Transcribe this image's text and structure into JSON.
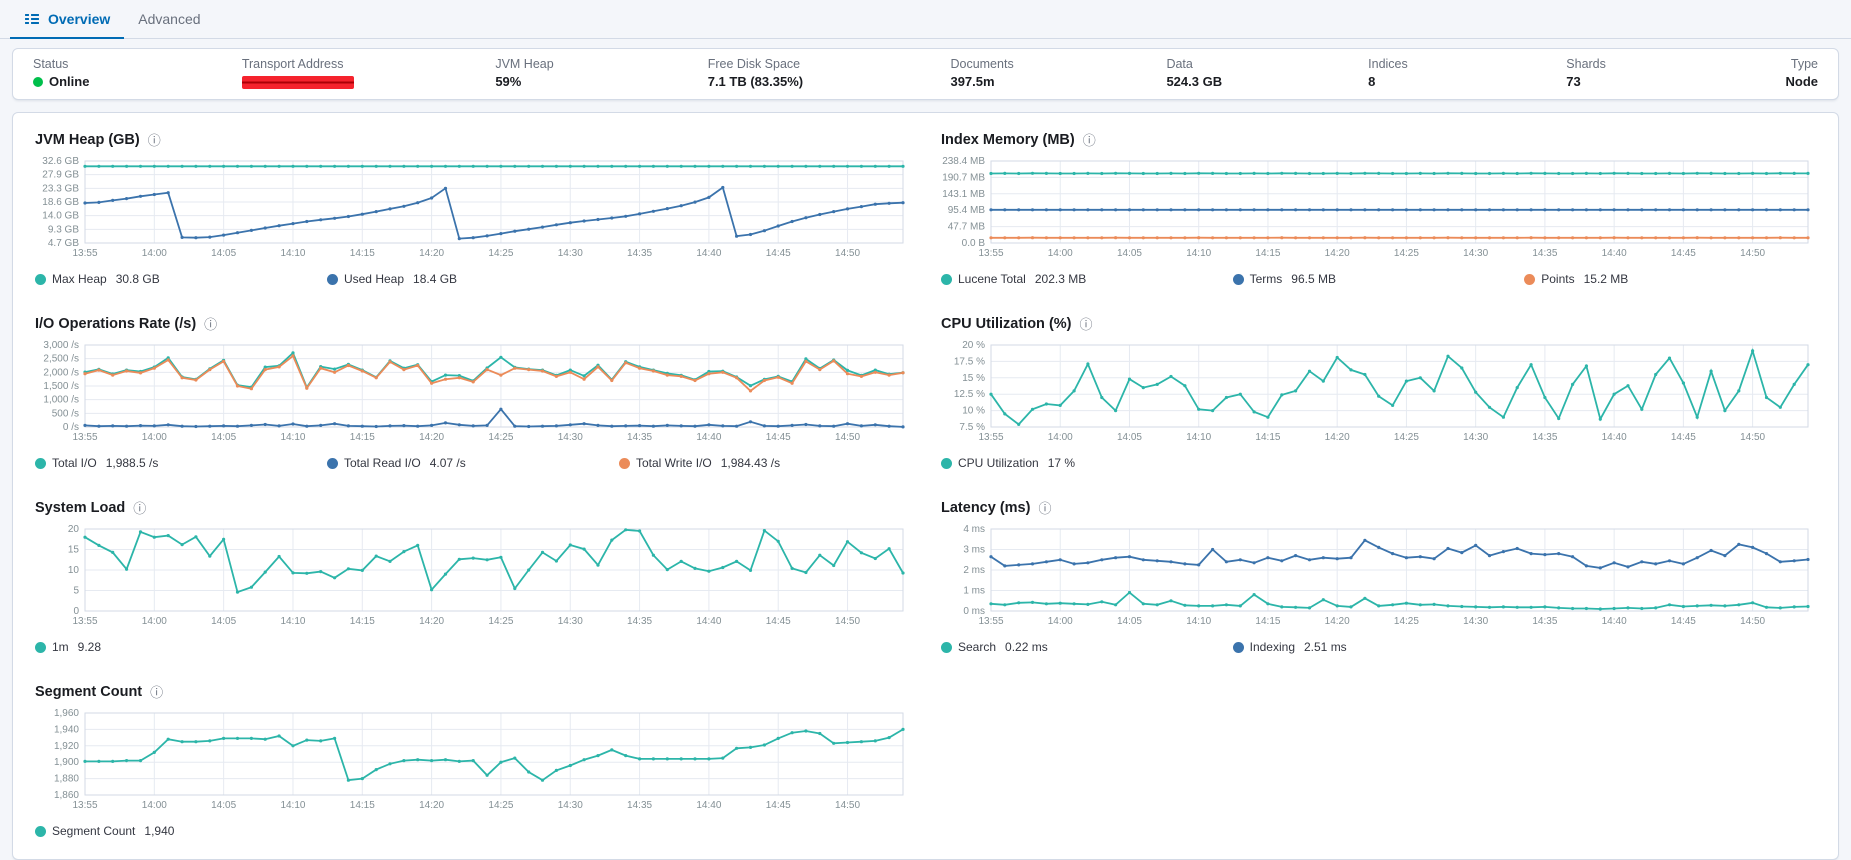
{
  "colors": {
    "teal": "#2cb5a9",
    "blue": "#3b73ac",
    "orange": "#eb8b59",
    "green": "#00bf4b",
    "tab_blue": "#006bb4",
    "grid_line": "#e6eaf1",
    "axis_border": "#d3dae6",
    "axis_text": "#849095"
  },
  "tabs": [
    {
      "label": "Overview",
      "active": true
    },
    {
      "label": "Advanced",
      "active": false
    }
  ],
  "summary": {
    "items": [
      {
        "label": "Status",
        "value": "Online"
      },
      {
        "label": "Transport Address",
        "value": "",
        "redacted": true
      },
      {
        "label": "JVM Heap",
        "value": "59%"
      },
      {
        "label": "Free Disk Space",
        "value": "7.1 TB (83.35%)"
      },
      {
        "label": "Documents",
        "value": "397.5m"
      },
      {
        "label": "Data",
        "value": "524.3 GB"
      },
      {
        "label": "Indices",
        "value": "8"
      },
      {
        "label": "Shards",
        "value": "73"
      },
      {
        "label": "Type",
        "value": "Node"
      }
    ]
  },
  "time_ticks": [
    "13:55",
    "14:00",
    "14:05",
    "14:10",
    "14:15",
    "14:20",
    "14:25",
    "14:30",
    "14:35",
    "14:40",
    "14:45",
    "14:50"
  ],
  "charts": [
    {
      "id": "jvm-heap",
      "title": "JVM Heap (GB)",
      "y_ticks": [
        "32.6 GB",
        "27.9 GB",
        "23.3 GB",
        "18.6 GB",
        "14.0 GB",
        "9.3 GB",
        "4.7 GB"
      ],
      "ymin": 4.7,
      "ymax": 32.6,
      "series": [
        {
          "label": "Max Heap",
          "value": "30.8 GB",
          "color": "teal",
          "values": [
            30.8,
            30.8,
            30.8,
            30.8,
            30.8,
            30.8,
            30.8,
            30.8,
            30.8,
            30.8,
            30.8,
            30.8,
            30.8,
            30.8,
            30.8,
            30.8,
            30.8,
            30.8,
            30.8,
            30.8,
            30.8,
            30.8,
            30.8,
            30.8,
            30.8,
            30.8,
            30.8,
            30.8,
            30.8,
            30.8,
            30.8,
            30.8,
            30.8,
            30.8,
            30.8,
            30.8,
            30.8,
            30.8,
            30.8,
            30.8,
            30.8,
            30.8,
            30.8,
            30.8,
            30.8,
            30.8,
            30.8,
            30.8,
            30.8,
            30.8,
            30.8,
            30.8,
            30.8,
            30.8,
            30.8,
            30.8,
            30.8,
            30.8,
            30.8,
            30.8
          ]
        },
        {
          "label": "Used Heap",
          "value": "18.4 GB",
          "color": "blue",
          "values": [
            18.3,
            18.5,
            19.2,
            19.8,
            20.6,
            21.2,
            21.8,
            6.6,
            6.5,
            6.7,
            7.4,
            8.2,
            9.0,
            9.8,
            10.6,
            11.3,
            12.0,
            12.6,
            13.1,
            13.7,
            14.5,
            15.4,
            16.3,
            17.2,
            18.4,
            20.0,
            23.3,
            6.2,
            6.5,
            7.1,
            7.9,
            8.7,
            9.4,
            10.1,
            10.9,
            11.6,
            12.2,
            12.7,
            13.2,
            13.8,
            14.6,
            15.5,
            16.4,
            17.4,
            18.6,
            20.2,
            23.6,
            7.0,
            7.6,
            8.9,
            10.5,
            12.0,
            13.3,
            14.4,
            15.4,
            16.3,
            17.1,
            17.9,
            18.2,
            18.4
          ]
        }
      ]
    },
    {
      "id": "index-memory",
      "title": "Index Memory (MB)",
      "y_ticks": [
        "238.4 MB",
        "190.7 MB",
        "143.1 MB",
        "95.4 MB",
        "47.7 MB",
        "0.0 B"
      ],
      "ymin": 0,
      "ymax": 238.4,
      "series": [
        {
          "label": "Lucene Total",
          "value": "202.3 MB",
          "color": "teal",
          "values": [
            202.1,
            202.4,
            202.2,
            202.5,
            202.3,
            202.0,
            202.1,
            202.4,
            202.2,
            202.5,
            202.3,
            202.0,
            202.1,
            202.4,
            202.2,
            202.5,
            202.3,
            202.0,
            202.1,
            202.4,
            202.2,
            202.5,
            202.3,
            202.0,
            202.1,
            202.4,
            202.2,
            202.5,
            202.3,
            202.0,
            202.1,
            202.4,
            202.2,
            202.5,
            202.3,
            202.0,
            202.1,
            202.4,
            202.2,
            202.5,
            202.3,
            202.0,
            202.1,
            202.4,
            202.2,
            202.5,
            202.3,
            202.0,
            202.1,
            202.4,
            202.2,
            202.5,
            202.3,
            202.0,
            202.1,
            202.4,
            202.2,
            202.5,
            202.3,
            202.3
          ]
        },
        {
          "label": "Terms",
          "value": "96.5 MB",
          "color": "blue",
          "values": [
            96.5,
            96.4,
            96.5,
            96.6,
            96.5,
            96.5,
            96.5,
            96.4,
            96.5,
            96.6,
            96.5,
            96.5,
            96.5,
            96.4,
            96.5,
            96.6,
            96.5,
            96.5,
            96.5,
            96.4,
            96.5,
            96.6,
            96.5,
            96.5,
            96.5,
            96.4,
            96.5,
            96.6,
            96.5,
            96.5,
            96.5,
            96.4,
            96.5,
            96.6,
            96.5,
            96.5,
            96.5,
            96.4,
            96.5,
            96.6,
            96.5,
            96.5,
            96.5,
            96.4,
            96.5,
            96.6,
            96.5,
            96.5,
            96.5,
            96.4,
            96.5,
            96.6,
            96.5,
            96.5,
            96.5,
            96.4,
            96.5,
            96.6,
            96.5,
            96.5
          ]
        },
        {
          "label": "Points",
          "value": "15.2 MB",
          "color": "orange",
          "values": [
            15.2,
            15.1,
            15.2,
            15.3,
            15.2,
            15.2,
            15.2,
            15.1,
            15.2,
            15.3,
            15.2,
            15.2,
            15.2,
            15.1,
            15.2,
            15.3,
            15.2,
            15.2,
            15.2,
            15.1,
            15.2,
            15.3,
            15.2,
            15.2,
            15.2,
            15.1,
            15.2,
            15.3,
            15.2,
            15.2,
            15.2,
            15.1,
            15.2,
            15.3,
            15.2,
            15.2,
            15.2,
            15.1,
            15.2,
            15.3,
            15.2,
            15.2,
            15.2,
            15.1,
            15.2,
            15.3,
            15.2,
            15.2,
            15.2,
            15.1,
            15.2,
            15.3,
            15.2,
            15.2,
            15.2,
            15.1,
            15.2,
            15.3,
            15.2,
            15.2
          ]
        }
      ]
    },
    {
      "id": "io-rate",
      "title": "I/O Operations Rate (/s)",
      "y_ticks": [
        "3,000 /s",
        "2,500 /s",
        "2,000 /s",
        "1,500 /s",
        "1,000 /s",
        "500 /s",
        "0 /s"
      ],
      "ymin": 0,
      "ymax": 3000,
      "series": [
        {
          "label": "Total I/O",
          "value": "1,988.5 /s",
          "color": "teal",
          "values": [
            2010,
            2110,
            1940,
            2080,
            2030,
            2190,
            2530,
            1830,
            1740,
            2130,
            2440,
            1530,
            1460,
            2190,
            2240,
            2710,
            1450,
            2210,
            2120,
            2290,
            2080,
            1820,
            2420,
            2150,
            2280,
            1660,
            1900,
            1880,
            1690,
            2160,
            2550,
            2180,
            2120,
            2080,
            1890,
            2080,
            1870,
            2260,
            1730,
            2390,
            2200,
            2080,
            1960,
            1890,
            1730,
            2030,
            2040,
            1830,
            1510,
            1740,
            1850,
            1660,
            2490,
            2140,
            2450,
            2070,
            1890,
            2080,
            1930,
            1988
          ]
        },
        {
          "label": "Total Read I/O",
          "value": "4.07 /s",
          "color": "blue",
          "values": [
            60,
            30,
            40,
            30,
            50,
            40,
            80,
            30,
            20,
            30,
            40,
            30,
            60,
            90,
            40,
            110,
            30,
            60,
            120,
            40,
            30,
            20,
            40,
            50,
            30,
            60,
            150,
            80,
            40,
            60,
            650,
            30,
            20,
            30,
            40,
            80,
            120,
            60,
            30,
            40,
            50,
            30,
            60,
            40,
            30,
            80,
            40,
            30,
            190,
            40,
            30,
            60,
            90,
            40,
            30,
            120,
            40,
            80,
            30,
            4
          ]
        },
        {
          "label": "Total Write I/O",
          "value": "1,984.43 /s",
          "color": "orange",
          "values": [
            1950,
            2080,
            1900,
            2050,
            1980,
            2150,
            2450,
            1800,
            1720,
            2100,
            2400,
            1500,
            1400,
            2100,
            2200,
            2600,
            1420,
            2150,
            2000,
            2250,
            2050,
            1800,
            2380,
            2100,
            2250,
            1600,
            1750,
            1800,
            1650,
            2100,
            1900,
            2150,
            2100,
            2050,
            1850,
            2000,
            1750,
            2200,
            1700,
            2350,
            2150,
            2050,
            1900,
            1850,
            1700,
            1950,
            2000,
            1800,
            1320,
            1700,
            1820,
            1600,
            2400,
            2100,
            2420,
            1950,
            1850,
            2000,
            1900,
            1984
          ]
        }
      ]
    },
    {
      "id": "cpu-utilization",
      "title": "CPU Utilization (%)",
      "y_ticks": [
        "20 %",
        "17.5 %",
        "15 %",
        "12.5 %",
        "10 %",
        "7.5 %"
      ],
      "ymin": 7.5,
      "ymax": 20,
      "series": [
        {
          "label": "CPU Utilization",
          "value": "17 %",
          "color": "teal",
          "values": [
            12.5,
            9.5,
            7.9,
            10.2,
            11.0,
            10.8,
            13.0,
            17.1,
            12.0,
            10.0,
            14.8,
            13.5,
            14.0,
            15.2,
            13.8,
            10.2,
            10.0,
            12.0,
            12.5,
            9.8,
            9.0,
            12.4,
            13.0,
            16.0,
            14.5,
            18.1,
            16.2,
            15.5,
            12.2,
            10.8,
            14.5,
            15.0,
            13.0,
            18.3,
            16.5,
            12.8,
            10.5,
            9.0,
            13.5,
            17.0,
            12.0,
            8.8,
            14.0,
            16.8,
            8.7,
            12.5,
            13.8,
            10.2,
            15.5,
            18.0,
            14.2,
            9.0,
            16.0,
            10.0,
            13.0,
            19.1,
            12.0,
            10.5,
            14.0,
            17.0
          ]
        }
      ]
    },
    {
      "id": "system-load",
      "title": "System Load",
      "y_ticks": [
        "20",
        "15",
        "10",
        "5",
        "0"
      ],
      "ymin": 0,
      "ymax": 20,
      "series": [
        {
          "label": "1m",
          "value": "9.28",
          "color": "teal",
          "values": [
            18.0,
            16.0,
            14.3,
            10.2,
            19.3,
            18.0,
            18.4,
            16.2,
            18.1,
            13.4,
            17.5,
            4.6,
            5.8,
            9.5,
            13.3,
            9.3,
            9.2,
            9.6,
            8.1,
            10.3,
            9.9,
            13.4,
            12.1,
            14.5,
            16.0,
            5.2,
            9.0,
            12.6,
            12.9,
            12.5,
            13.1,
            5.5,
            10.0,
            14.3,
            12.2,
            16.1,
            15.1,
            11.2,
            17.3,
            19.8,
            19.5,
            13.6,
            10.1,
            12.1,
            10.4,
            9.7,
            10.6,
            12.1,
            9.9,
            19.6,
            17.0,
            10.4,
            9.4,
            13.6,
            11.1,
            16.9,
            14.2,
            12.8,
            15.2,
            9.28
          ]
        }
      ]
    },
    {
      "id": "latency",
      "title": "Latency (ms)",
      "y_ticks": [
        "4 ms",
        "3 ms",
        "2 ms",
        "1 ms",
        "0 ms"
      ],
      "ymin": 0,
      "ymax": 4,
      "series": [
        {
          "label": "Search",
          "value": "0.22 ms",
          "color": "teal",
          "values": [
            0.35,
            0.3,
            0.4,
            0.42,
            0.35,
            0.38,
            0.35,
            0.32,
            0.45,
            0.3,
            0.9,
            0.35,
            0.3,
            0.5,
            0.28,
            0.25,
            0.25,
            0.3,
            0.25,
            0.8,
            0.35,
            0.2,
            0.18,
            0.15,
            0.55,
            0.25,
            0.2,
            0.62,
            0.25,
            0.3,
            0.38,
            0.3,
            0.32,
            0.25,
            0.22,
            0.2,
            0.18,
            0.2,
            0.18,
            0.18,
            0.2,
            0.15,
            0.12,
            0.12,
            0.1,
            0.12,
            0.15,
            0.12,
            0.15,
            0.3,
            0.22,
            0.25,
            0.28,
            0.25,
            0.3,
            0.4,
            0.18,
            0.15,
            0.2,
            0.22
          ]
        },
        {
          "label": "Indexing",
          "value": "2.51 ms",
          "color": "blue",
          "values": [
            2.65,
            2.2,
            2.25,
            2.3,
            2.4,
            2.5,
            2.3,
            2.35,
            2.5,
            2.6,
            2.65,
            2.5,
            2.45,
            2.4,
            2.3,
            2.25,
            3.0,
            2.4,
            2.5,
            2.35,
            2.6,
            2.45,
            2.7,
            2.5,
            2.6,
            2.55,
            2.6,
            3.45,
            3.1,
            2.8,
            2.6,
            2.65,
            2.55,
            3.05,
            2.85,
            3.2,
            2.7,
            2.9,
            3.05,
            2.8,
            2.75,
            2.8,
            2.65,
            2.2,
            2.1,
            2.35,
            2.15,
            2.4,
            2.3,
            2.45,
            2.3,
            2.6,
            2.95,
            2.7,
            3.25,
            3.1,
            2.8,
            2.4,
            2.45,
            2.51
          ]
        }
      ]
    },
    {
      "id": "segment-count",
      "title": "Segment Count",
      "y_ticks": [
        "1,960",
        "1,940",
        "1,920",
        "1,900",
        "1,880",
        "1,860"
      ],
      "ymin": 1860,
      "ymax": 1960,
      "series": [
        {
          "label": "Segment Count",
          "value": "1,940",
          "color": "teal",
          "values": [
            1901,
            1901,
            1901,
            1902,
            1902,
            1912,
            1928,
            1925,
            1925,
            1926,
            1929,
            1929,
            1929,
            1928,
            1932,
            1920,
            1927,
            1926,
            1929,
            1878,
            1880,
            1891,
            1898,
            1902,
            1903,
            1902,
            1903,
            1901,
            1902,
            1884,
            1900,
            1905,
            1888,
            1878,
            1890,
            1896,
            1903,
            1908,
            1915,
            1908,
            1904,
            1904,
            1904,
            1904,
            1904,
            1904,
            1905,
            1917,
            1918,
            1921,
            1929,
            1936,
            1938,
            1935,
            1923,
            1924,
            1925,
            1926,
            1930,
            1940
          ]
        }
      ]
    }
  ]
}
